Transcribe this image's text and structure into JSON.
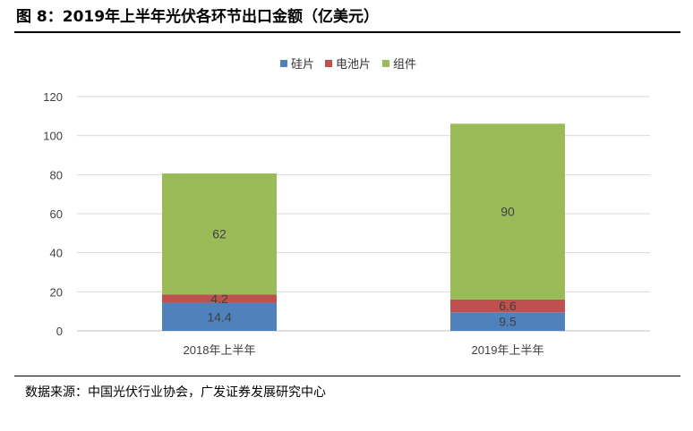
{
  "title": "图 8：2019年上半年光伏各环节出口金额（亿美元）",
  "source": "数据来源：中国光伏行业协会，广发证券发展研究中心",
  "colors": {
    "硅片": "#4F81BD",
    "电池片": "#C0504D",
    "组件": "#9BBB59"
  },
  "chart_data": {
    "type": "bar",
    "stacked": true,
    "categories": [
      "2018年上半年",
      "2019年上半年"
    ],
    "series": [
      {
        "name": "硅片",
        "values": [
          14.4,
          9.5
        ]
      },
      {
        "name": "电池片",
        "values": [
          4.2,
          6.6
        ]
      },
      {
        "name": "组件",
        "values": [
          62,
          90
        ]
      }
    ],
    "ylim": [
      0,
      120
    ],
    "yticks": [
      0,
      20,
      40,
      60,
      80,
      100,
      120
    ],
    "grid": true,
    "legend": "top-center"
  }
}
